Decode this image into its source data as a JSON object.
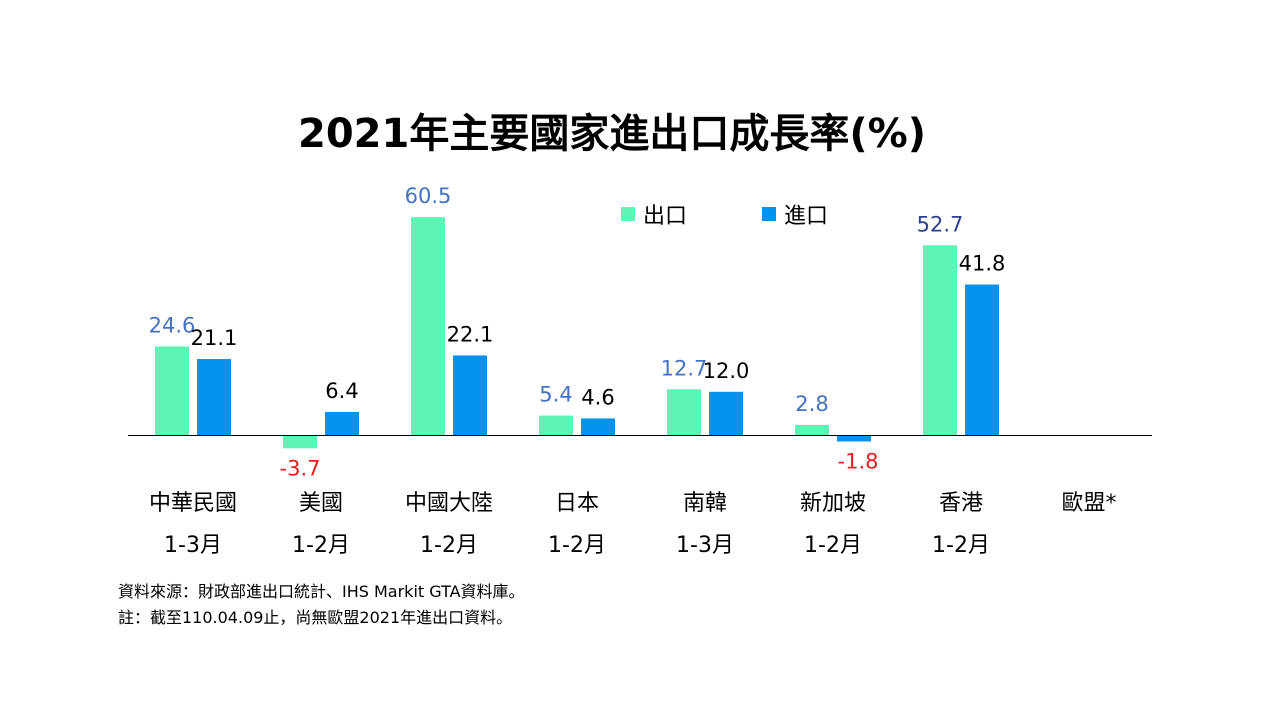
{
  "chart_data": {
    "type": "bar",
    "title": "2021年主要國家進出口成長率(%)",
    "categories": [
      "中華民國",
      "美國",
      "中國大陸",
      "日本",
      "南韓",
      "新加坡",
      "香港",
      "歐盟*"
    ],
    "periods": [
      "1-3月",
      "1-2月",
      "1-2月",
      "1-2月",
      "1-3月",
      "1-2月",
      "1-2月",
      ""
    ],
    "series": [
      {
        "name": "出口",
        "color": "#5cf5b6",
        "values": [
          24.6,
          -3.7,
          60.5,
          5.4,
          12.7,
          2.8,
          52.7,
          null
        ]
      },
      {
        "name": "進口",
        "color": "#0591ef",
        "values": [
          21.1,
          6.4,
          22.1,
          4.6,
          12.0,
          -1.8,
          41.8,
          null
        ]
      }
    ],
    "ylim": [
      -5,
      65
    ],
    "legend_position": "top-right",
    "grid": false,
    "label_colors": {
      "export": [
        "#4472c4",
        "#e02020",
        "#4472c4",
        "#4472c4",
        "#4472c4",
        "#4472c4",
        "#2f3f8f"
      ],
      "import": [
        "#000000",
        "#000000",
        "#000000",
        "#000000",
        "#000000",
        "#e02020",
        "#000000"
      ]
    }
  },
  "notes": {
    "source": "資料來源：財政部進出口統計、IHS Markit GTA資料庫。",
    "remark": "註：截至110.04.09止，尚無歐盟2021年進出口資料。"
  }
}
